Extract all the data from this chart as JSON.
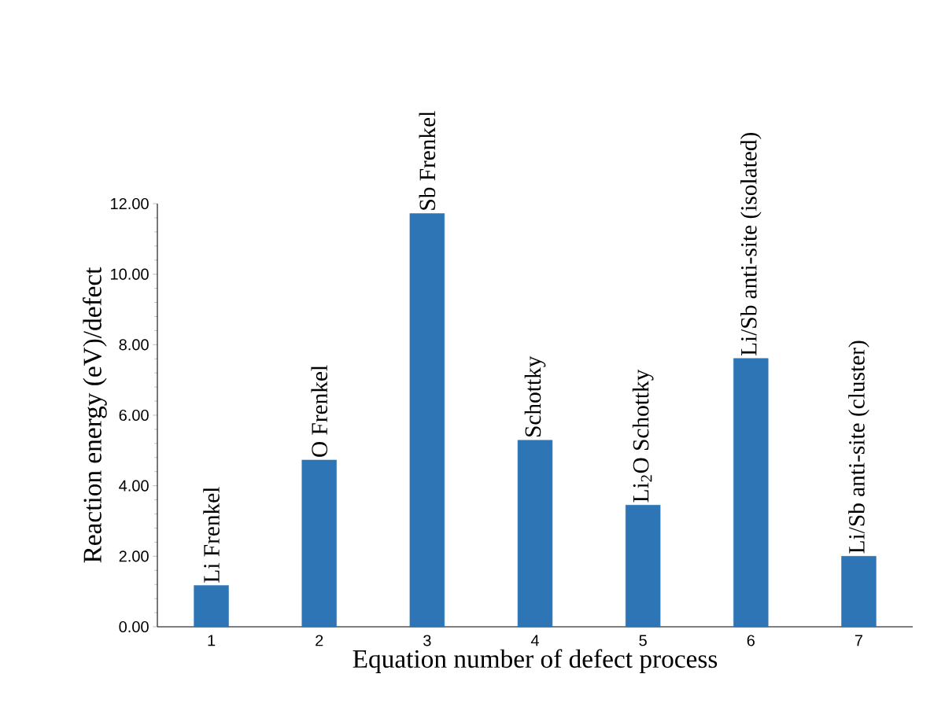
{
  "chart_data": {
    "type": "bar",
    "xlabel": "Equation number of  defect process",
    "ylabel": "Reaction energy (eV)/defect",
    "categories": [
      "1",
      "2",
      "3",
      "4",
      "5",
      "6",
      "7"
    ],
    "values": [
      1.17,
      4.73,
      11.72,
      5.29,
      3.45,
      7.61,
      2.0
    ],
    "color": "#2e75b6",
    "ylim": [
      0,
      12
    ],
    "yticks": [
      {
        "value": 0,
        "label": "0.00"
      },
      {
        "value": 2,
        "label": "2.00"
      },
      {
        "value": 4,
        "label": "4.00"
      },
      {
        "value": 6,
        "label": "6.00"
      },
      {
        "value": 8,
        "label": "8.00"
      },
      {
        "value": 10,
        "label": "10.00"
      },
      {
        "value": 12,
        "label": "12.00"
      }
    ],
    "annotations": [
      {
        "text": "Li Frenkel",
        "x": "1",
        "y": 1.17
      },
      {
        "text": "O Frenkel",
        "x": "2",
        "y": 4.73
      },
      {
        "text": "Sb Frenkel",
        "x": "3",
        "y": 11.72
      },
      {
        "text": "Schottky",
        "x": "4",
        "y": 5.29
      },
      {
        "text": "Li$_{2}$O Schottky",
        "x": "5",
        "y": 3.45
      },
      {
        "text": "Li/Sb anti-site (isolated)",
        "x": "6",
        "y": 7.61
      },
      {
        "text": "Li/Sb anti-site (cluster)",
        "x": "7",
        "y": 2.0
      }
    ],
    "grid": false
  }
}
